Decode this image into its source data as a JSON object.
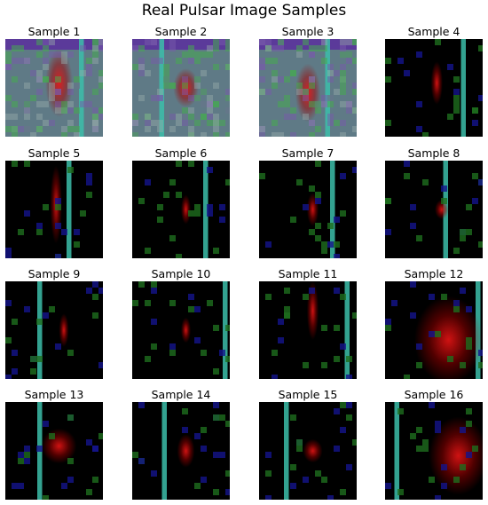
{
  "header": {
    "title": "Real Pulsar Image Samples"
  },
  "panels": [
    {
      "title": "Sample 1"
    },
    {
      "title": "Sample 2"
    },
    {
      "title": "Sample 3"
    },
    {
      "title": "Sample 4"
    },
    {
      "title": "Sample 5"
    },
    {
      "title": "Sample 6"
    },
    {
      "title": "Sample 7"
    },
    {
      "title": "Sample 8"
    },
    {
      "title": "Sample 9"
    },
    {
      "title": "Sample 10"
    },
    {
      "title": "Sample 11"
    },
    {
      "title": "Sample 12"
    },
    {
      "title": "Sample 13"
    },
    {
      "title": "Sample 14"
    },
    {
      "title": "Sample 15"
    },
    {
      "title": "Sample 16"
    }
  ]
}
